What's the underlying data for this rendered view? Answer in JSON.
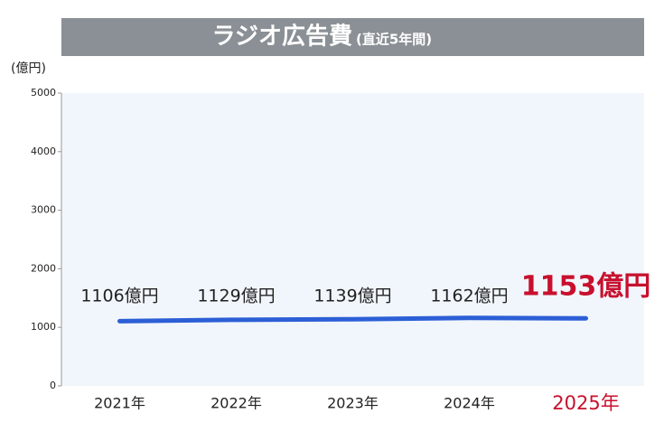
{
  "chart_data": {
    "type": "line",
    "title": "ラジオ広告費",
    "subtitle": "(直近5年間)",
    "y_label": "(億円)",
    "categories": [
      "2021年",
      "2022年",
      "2023年",
      "2024年",
      "2025年"
    ],
    "series": [
      {
        "name": "ラジオ広告費",
        "color": "#2c5fd6",
        "values": [
          1106,
          1129,
          1139,
          1162,
          1153
        ],
        "value_labels": [
          "1106億円",
          "1129億円",
          "1139億円",
          "1162億円",
          "1153億円"
        ]
      }
    ],
    "highlight_color": "#c8102e",
    "ylim": [
      0,
      5000
    ],
    "yticks": [
      0,
      1000,
      2000,
      3000,
      4000,
      5000
    ],
    "grid": false
  }
}
